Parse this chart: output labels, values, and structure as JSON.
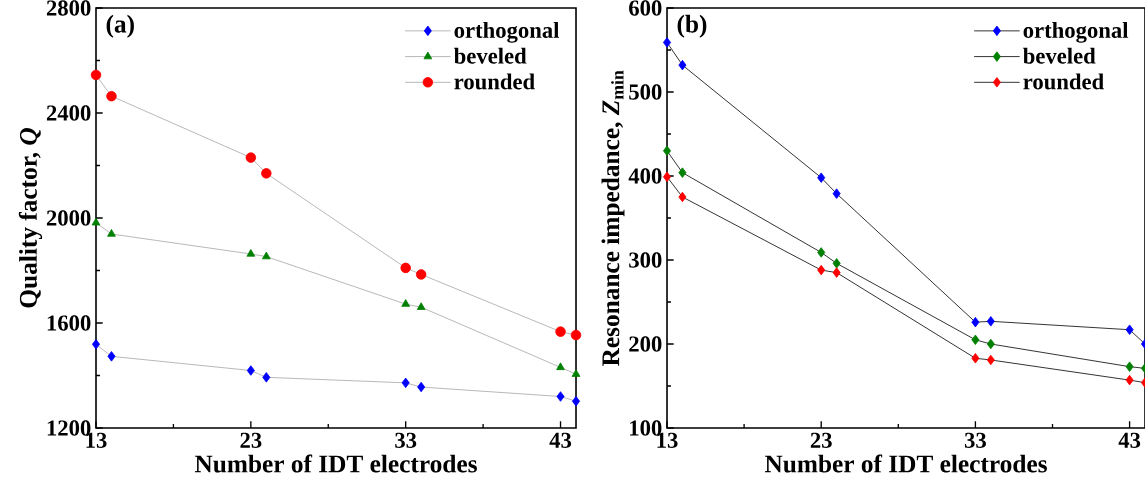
{
  "chart_data": [
    {
      "type": "line",
      "xlabel": "Number of IDT electrodes",
      "ylabel": "Quality factor, *Q*",
      "annotations": [
        "(a)"
      ],
      "xlim": [
        13,
        44
      ],
      "xticks": [
        13,
        23,
        33,
        43
      ],
      "ylim": [
        1200,
        2800
      ],
      "yticks": [
        1200,
        1600,
        2000,
        2400,
        2800
      ],
      "legend": "top right",
      "grid": false,
      "x": [
        13,
        14,
        23,
        24,
        33,
        34,
        43,
        44
      ],
      "series": [
        {
          "name": "orthogonal",
          "color": "#0000ff",
          "marker": "diamond",
          "values": [
            1519,
            1473,
            1419,
            1393,
            1372,
            1356,
            1320,
            1302
          ]
        },
        {
          "name": "beveled",
          "color": "#008000",
          "marker": "triangle",
          "values": [
            1982,
            1939,
            1863,
            1853,
            1672,
            1660,
            1431,
            1405
          ]
        },
        {
          "name": "rounded",
          "color": "#ff0000",
          "marker": "circle",
          "values": [
            2545,
            2464,
            2230,
            2170,
            1810,
            1785,
            1567,
            1554
          ]
        }
      ]
    },
    {
      "type": "line",
      "xlabel": "Number of IDT electrodes",
      "ylabel": "Resonance impedance, *Z*$_{min}$",
      "annotations": [
        "(b)"
      ],
      "xlim": [
        13,
        44
      ],
      "xticks": [
        13,
        23,
        33,
        43
      ],
      "ylim": [
        100,
        600
      ],
      "yticks": [
        100,
        200,
        300,
        400,
        500,
        600
      ],
      "legend": "top right",
      "grid": false,
      "x": [
        13,
        14,
        23,
        24,
        33,
        34,
        43,
        44
      ],
      "series": [
        {
          "name": "orthogonal",
          "color": "#0000ff",
          "marker": "diamond",
          "values": [
            559,
            532,
            398,
            379,
            226,
            227,
            217,
            200
          ]
        },
        {
          "name": "beveled",
          "color": "#008000",
          "marker": "diamond",
          "values": [
            430,
            404,
            309,
            296,
            205,
            200,
            173,
            171
          ]
        },
        {
          "name": "rounded",
          "color": "#ff0000",
          "marker": "diamond",
          "values": [
            399,
            375,
            288,
            285,
            183,
            181,
            157,
            154
          ]
        }
      ]
    }
  ]
}
